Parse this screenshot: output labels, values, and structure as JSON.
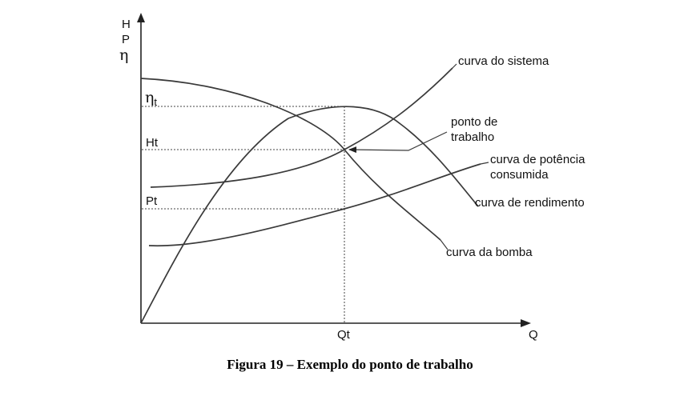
{
  "axes": {
    "y_labels": [
      "H",
      "P",
      "η"
    ],
    "x_label": "Q",
    "x_tick": "Qt"
  },
  "levels": {
    "eta_main": "η",
    "eta_sub": "t",
    "head": "Ht",
    "power": "Pt"
  },
  "curves": {
    "system": "curva do sistema",
    "operating_point": [
      "ponto de",
      "trabalho"
    ],
    "power": [
      "curva de potência",
      "consumida"
    ],
    "efficiency": "curva de rendimento",
    "pump": "curva da bomba"
  },
  "caption": "Figura 19 – Exemplo do ponto de trabalho"
}
